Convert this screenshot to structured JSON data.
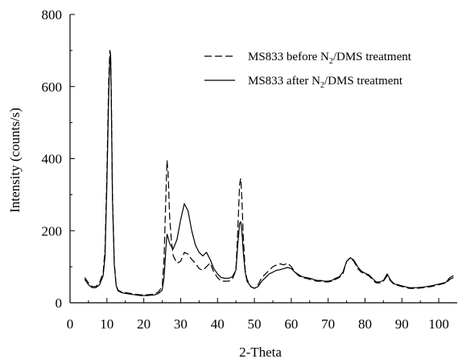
{
  "chart_data": {
    "type": "line",
    "xlabel": "2-Theta",
    "ylabel": "Intensity (counts/s)",
    "xlim": [
      0,
      105
    ],
    "ylim": [
      0,
      800
    ],
    "xticks": [
      0,
      10,
      20,
      30,
      40,
      50,
      60,
      70,
      80,
      90,
      100
    ],
    "yticks": [
      0,
      200,
      400,
      600,
      800
    ],
    "legend_position": "top-right",
    "series": [
      {
        "name": "MS833 before N2/DMS treatment",
        "legend_parts": {
          "pre": "MS833 before N",
          "sub": "2",
          "post": "/DMS treatment"
        },
        "style": "dashed",
        "color": "#000000",
        "x": [
          4,
          5,
          6,
          7,
          8,
          9,
          9.5,
          10,
          10.5,
          10.8,
          11,
          11.2,
          11.5,
          12,
          12.5,
          13,
          14,
          15,
          17,
          19,
          21,
          23,
          24,
          25,
          25.5,
          26,
          26.3,
          26.6,
          27,
          27.5,
          28,
          29,
          30,
          31,
          32,
          33,
          34,
          35,
          36,
          37,
          38,
          39,
          40,
          41,
          42,
          43,
          44,
          45,
          45.5,
          46,
          46.3,
          46.6,
          47,
          47.5,
          48,
          49,
          50,
          51,
          52,
          53,
          54,
          55,
          56,
          57,
          58,
          59,
          60,
          61,
          62,
          63,
          64,
          65,
          66,
          67,
          68,
          69,
          70,
          71,
          72,
          73,
          74,
          75,
          76,
          77,
          78,
          79,
          80,
          81,
          82,
          83,
          84,
          85,
          86,
          87,
          88,
          89,
          90,
          92,
          94,
          96,
          98,
          100,
          102,
          103,
          104
        ],
        "y": [
          70,
          55,
          45,
          45,
          55,
          85,
          150,
          360,
          620,
          700,
          690,
          580,
          300,
          110,
          50,
          35,
          30,
          28,
          25,
          22,
          22,
          25,
          30,
          45,
          120,
          300,
          395,
          360,
          240,
          170,
          130,
          110,
          115,
          140,
          135,
          120,
          110,
          95,
          90,
          100,
          110,
          85,
          70,
          60,
          60,
          60,
          65,
          90,
          200,
          330,
          345,
          290,
          180,
          90,
          65,
          45,
          40,
          50,
          70,
          80,
          90,
          100,
          105,
          108,
          105,
          110,
          100,
          85,
          75,
          70,
          68,
          65,
          62,
          60,
          60,
          58,
          58,
          60,
          65,
          70,
          80,
          115,
          125,
          115,
          95,
          85,
          80,
          75,
          65,
          55,
          55,
          60,
          75,
          60,
          50,
          48,
          45,
          40,
          40,
          42,
          45,
          50,
          55,
          65,
          70
        ]
      },
      {
        "name": "MS833 after N2/DMS treatment",
        "legend_parts": {
          "pre": "MS833 after N",
          "sub": "2",
          "post": "/DMS treatment"
        },
        "style": "solid",
        "color": "#000000",
        "x": [
          4,
          5,
          6,
          7,
          8,
          9,
          9.5,
          10,
          10.5,
          10.8,
          11,
          11.2,
          11.5,
          12,
          12.5,
          13,
          14,
          15,
          17,
          19,
          21,
          23,
          24,
          25,
          25.5,
          26,
          26.3,
          26.6,
          27,
          27.5,
          28,
          29,
          30,
          31,
          32,
          33,
          34,
          35,
          36,
          37,
          38,
          39,
          40,
          41,
          42,
          43,
          44,
          45,
          45.5,
          46,
          46.3,
          46.6,
          47,
          47.5,
          48,
          49,
          50,
          51,
          52,
          53,
          54,
          55,
          56,
          57,
          58,
          59,
          60,
          61,
          62,
          63,
          64,
          65,
          66,
          67,
          68,
          69,
          70,
          71,
          72,
          73,
          74,
          75,
          76,
          77,
          78,
          79,
          80,
          81,
          82,
          83,
          84,
          85,
          86,
          87,
          88,
          89,
          90,
          92,
          94,
          96,
          98,
          100,
          102,
          103,
          104
        ],
        "y": [
          65,
          50,
          42,
          42,
          50,
          75,
          130,
          330,
          580,
          680,
          690,
          560,
          290,
          105,
          48,
          33,
          28,
          26,
          23,
          20,
          20,
          22,
          26,
          35,
          70,
          150,
          190,
          180,
          165,
          155,
          150,
          175,
          230,
          275,
          255,
          200,
          160,
          140,
          130,
          140,
          120,
          95,
          80,
          70,
          68,
          68,
          72,
          90,
          160,
          220,
          225,
          200,
          140,
          85,
          60,
          45,
          40,
          45,
          60,
          70,
          80,
          85,
          90,
          92,
          95,
          98,
          95,
          85,
          78,
          72,
          70,
          68,
          65,
          62,
          62,
          60,
          60,
          62,
          68,
          72,
          85,
          115,
          125,
          118,
          100,
          88,
          82,
          78,
          68,
          58,
          58,
          62,
          80,
          62,
          52,
          50,
          47,
          42,
          42,
          44,
          47,
          52,
          57,
          70,
          75
        ]
      }
    ]
  }
}
